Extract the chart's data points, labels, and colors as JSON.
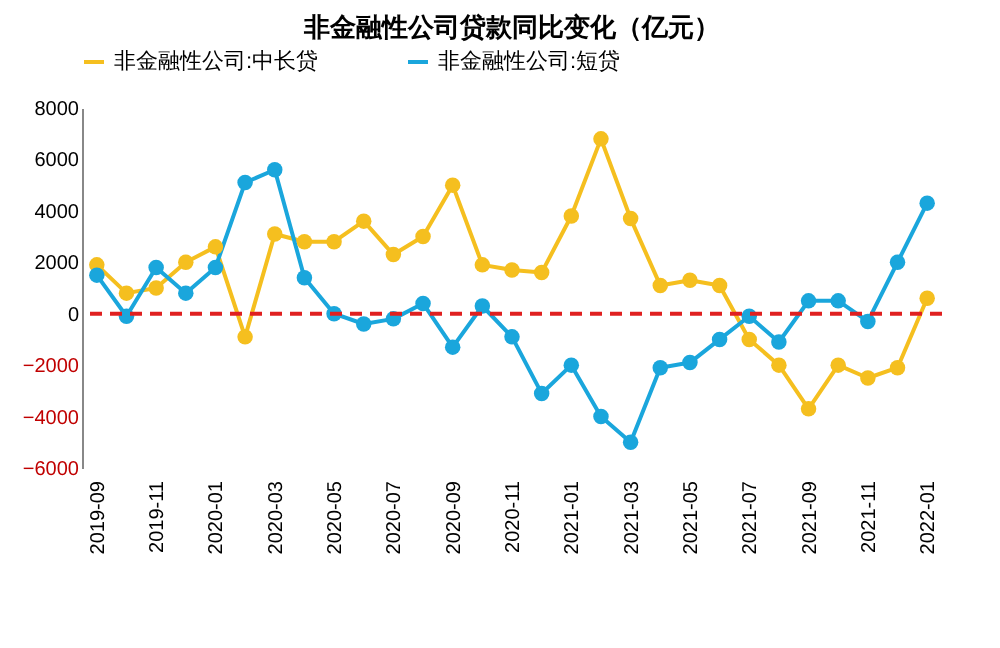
{
  "chart_data": {
    "type": "line",
    "title": "非金融性公司贷款同比变化（亿元）",
    "categories": [
      "2019-09",
      null,
      "2019-11",
      null,
      "2020-01",
      null,
      "2020-03",
      null,
      "2020-05",
      null,
      "2020-07",
      null,
      "2020-09",
      null,
      "2020-11",
      null,
      "2021-01",
      null,
      "2021-03",
      null,
      "2021-05",
      null,
      "2021-07",
      null,
      "2021-09",
      null,
      "2021-11",
      null,
      "2022-01"
    ],
    "series": [
      {
        "name": "非金融性公司:中长贷",
        "color": "#f5bf1f",
        "values": [
          1900,
          800,
          1000,
          2000,
          2600,
          -900,
          3100,
          2800,
          2800,
          3600,
          2300,
          3000,
          5000,
          1900,
          1700,
          1600,
          3800,
          6800,
          3700,
          1100,
          1300,
          1100,
          -1000,
          -2000,
          -3700,
          -2000,
          -2500,
          -2100,
          600
        ]
      },
      {
        "name": "非金融性公司:短贷",
        "color": "#1aa6dc",
        "values": [
          1500,
          -100,
          1800,
          800,
          1800,
          5100,
          5600,
          1400,
          0,
          -400,
          -200,
          400,
          -1300,
          300,
          -900,
          -3100,
          -2000,
          -4000,
          -5000,
          -2100,
          -1900,
          -1000,
          -100,
          -1100,
          500,
          500,
          -300,
          2000,
          4300
        ]
      }
    ],
    "ylim": [
      -6000,
      8000
    ],
    "yticks": [
      -6000,
      -4000,
      -2000,
      0,
      2000,
      4000,
      6000,
      8000
    ],
    "ref_lines": [
      {
        "axis": "y",
        "value": 0,
        "color": "#e02020",
        "line_style": "dashed"
      }
    ],
    "legend": "top",
    "marker": "circle",
    "line_style": "solid",
    "grid": false
  }
}
